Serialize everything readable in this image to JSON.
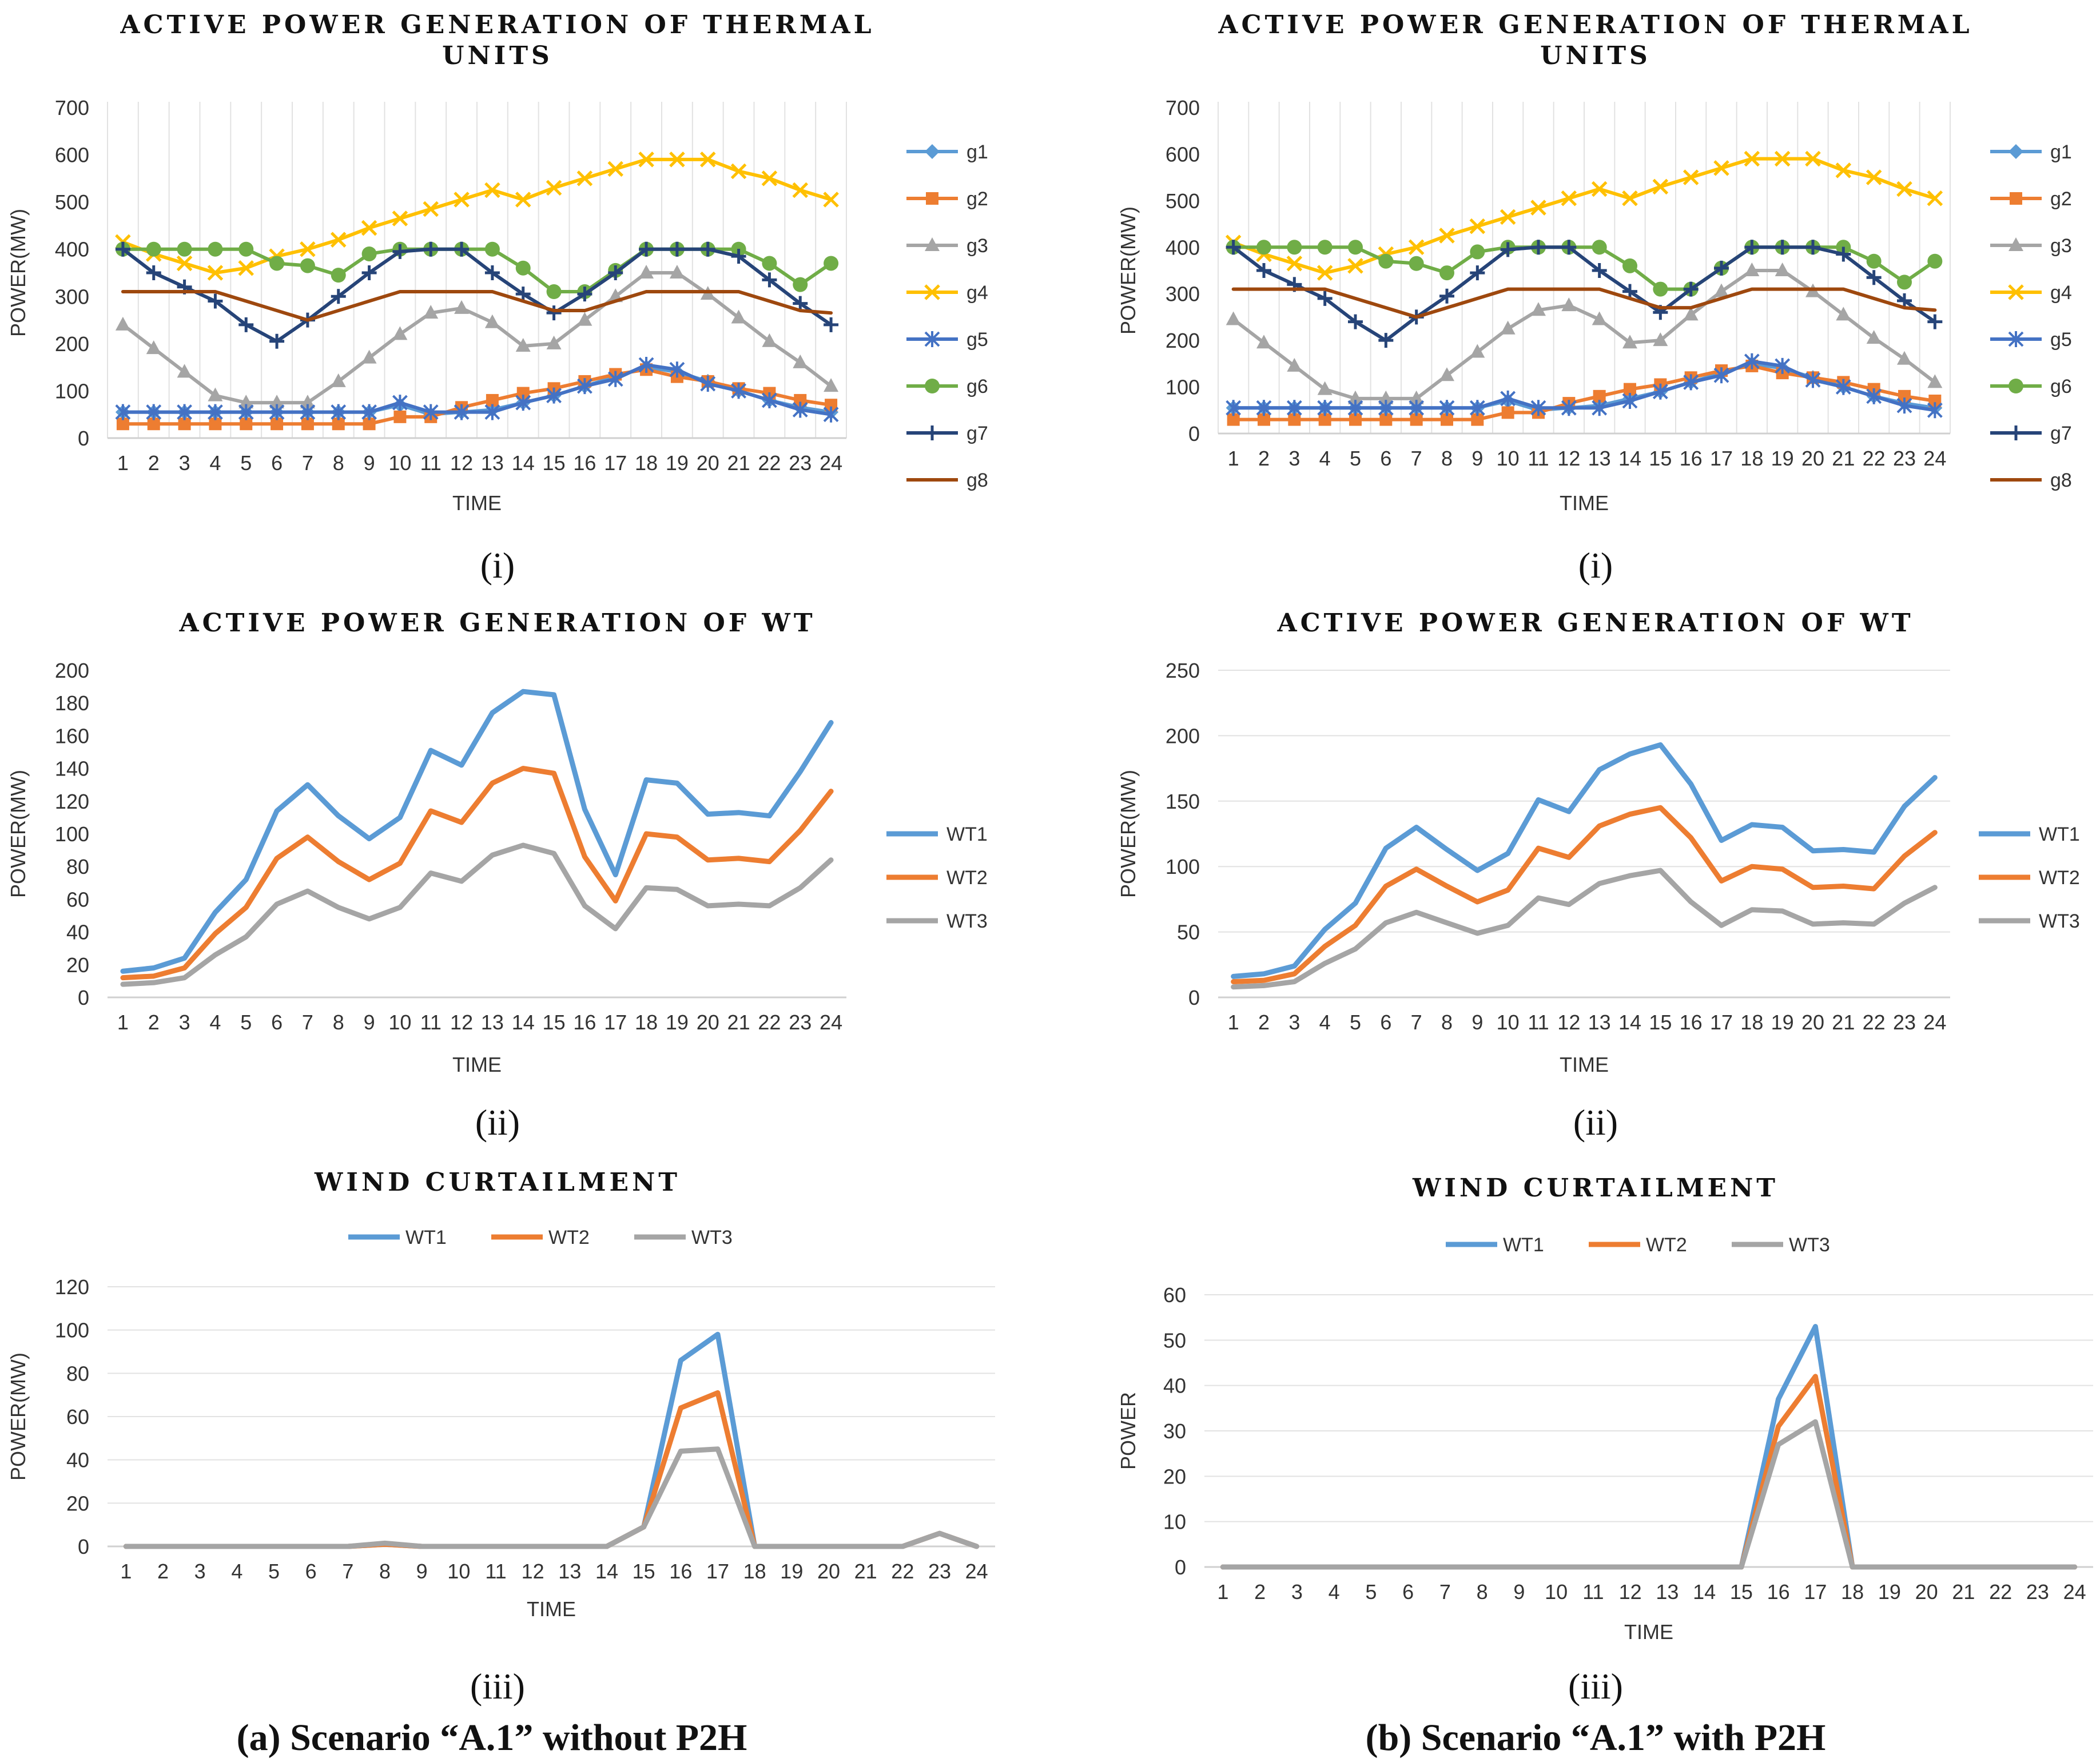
{
  "captions": {
    "left": "(a) Scenario “A.1” without P2H",
    "right": "(b) Scenario “A.1” with P2H"
  },
  "colors": {
    "g1": "#5B9BD5",
    "g2": "#ED7D31",
    "g3": "#A5A5A5",
    "g4": "#FFC000",
    "g5": "#4472C4",
    "g6": "#70AD47",
    "g7": "#264478",
    "g8": "#9E480E",
    "WT1": "#5B9BD5",
    "WT2": "#ED7D31",
    "WT3": "#A5A5A5"
  },
  "chart_data": [
    {
      "id": "a_i",
      "panel_label": "(i)",
      "type": "line",
      "title": [
        "ACTIVE POWER GENERATION OF THERMAL",
        "UNITS"
      ],
      "xlabel": "TIME",
      "ylabel": "POWER(MW)",
      "ylim": [
        0,
        700
      ],
      "ystep": 100,
      "grid": "vertical",
      "legend": "right",
      "markers": true,
      "x": [
        1,
        2,
        3,
        4,
        5,
        6,
        7,
        8,
        9,
        10,
        11,
        12,
        13,
        14,
        15,
        16,
        17,
        18,
        19,
        20,
        21,
        22,
        23,
        24
      ],
      "series": [
        {
          "name": "g1",
          "marker": "diamond",
          "values": [
            55,
            55,
            55,
            55,
            55,
            55,
            55,
            55,
            55,
            70,
            50,
            55,
            60,
            75,
            90,
            110,
            130,
            150,
            140,
            120,
            100,
            80,
            65,
            55
          ]
        },
        {
          "name": "g2",
          "marker": "square",
          "values": [
            30,
            30,
            30,
            30,
            30,
            30,
            30,
            30,
            30,
            45,
            45,
            65,
            80,
            95,
            105,
            120,
            135,
            145,
            130,
            120,
            105,
            95,
            80,
            70
          ]
        },
        {
          "name": "g3",
          "marker": "triangle",
          "values": [
            240,
            190,
            140,
            90,
            75,
            75,
            75,
            120,
            170,
            220,
            265,
            275,
            245,
            195,
            200,
            250,
            300,
            350,
            350,
            305,
            255,
            205,
            160,
            110
          ]
        },
        {
          "name": "g4",
          "marker": "x",
          "values": [
            415,
            390,
            370,
            350,
            360,
            385,
            400,
            420,
            445,
            465,
            485,
            505,
            525,
            505,
            530,
            550,
            570,
            590,
            590,
            590,
            565,
            550,
            525,
            505
          ]
        },
        {
          "name": "g5",
          "marker": "asterisk",
          "values": [
            55,
            55,
            55,
            55,
            55,
            55,
            55,
            55,
            55,
            75,
            55,
            55,
            55,
            75,
            90,
            110,
            125,
            155,
            145,
            115,
            100,
            80,
            60,
            50
          ]
        },
        {
          "name": "g6",
          "marker": "circle",
          "values": [
            400,
            400,
            400,
            400,
            400,
            370,
            365,
            345,
            390,
            400,
            400,
            400,
            400,
            360,
            310,
            310,
            355,
            400,
            400,
            400,
            400,
            370,
            325,
            370
          ]
        },
        {
          "name": "g7",
          "marker": "plus",
          "values": [
            400,
            350,
            320,
            290,
            240,
            205,
            250,
            300,
            350,
            395,
            400,
            400,
            350,
            305,
            265,
            305,
            350,
            400,
            400,
            400,
            385,
            335,
            285,
            240
          ]
        },
        {
          "name": "g8",
          "marker": "none",
          "values": [
            310,
            310,
            310,
            310,
            290,
            270,
            250,
            270,
            290,
            310,
            310,
            310,
            310,
            290,
            270,
            270,
            290,
            310,
            310,
            310,
            310,
            290,
            270,
            265
          ]
        }
      ]
    },
    {
      "id": "b_i",
      "panel_label": "(i)",
      "type": "line",
      "title": [
        "ACTIVE POWER GENERATION OF THERMAL",
        "UNITS"
      ],
      "xlabel": "TIME",
      "ylabel": "POWER(MW)",
      "ylim": [
        0,
        700
      ],
      "ystep": 100,
      "grid": "vertical",
      "legend": "right",
      "markers": true,
      "x": [
        1,
        2,
        3,
        4,
        5,
        6,
        7,
        8,
        9,
        10,
        11,
        12,
        13,
        14,
        15,
        16,
        17,
        18,
        19,
        20,
        21,
        22,
        23,
        24
      ],
      "series": [
        {
          "name": "g1",
          "marker": "diamond",
          "values": [
            55,
            55,
            55,
            55,
            55,
            55,
            55,
            55,
            55,
            70,
            50,
            55,
            60,
            75,
            90,
            110,
            130,
            150,
            140,
            120,
            100,
            80,
            65,
            55
          ]
        },
        {
          "name": "g2",
          "marker": "square",
          "values": [
            30,
            30,
            30,
            30,
            30,
            30,
            30,
            30,
            30,
            45,
            45,
            65,
            80,
            95,
            105,
            120,
            135,
            145,
            130,
            120,
            110,
            95,
            80,
            70
          ]
        },
        {
          "name": "g3",
          "marker": "triangle",
          "values": [
            245,
            195,
            145,
            95,
            75,
            75,
            75,
            125,
            175,
            225,
            265,
            275,
            245,
            195,
            200,
            255,
            305,
            350,
            350,
            305,
            255,
            205,
            160,
            110
          ]
        },
        {
          "name": "g4",
          "marker": "x",
          "values": [
            410,
            385,
            365,
            345,
            360,
            385,
            400,
            425,
            445,
            465,
            485,
            505,
            525,
            505,
            530,
            550,
            570,
            590,
            590,
            590,
            565,
            550,
            525,
            505
          ]
        },
        {
          "name": "g5",
          "marker": "asterisk",
          "values": [
            55,
            55,
            55,
            55,
            55,
            55,
            55,
            55,
            55,
            75,
            55,
            55,
            55,
            70,
            90,
            110,
            125,
            155,
            145,
            115,
            100,
            80,
            60,
            50
          ]
        },
        {
          "name": "g6",
          "marker": "circle",
          "values": [
            400,
            400,
            400,
            400,
            400,
            370,
            365,
            345,
            390,
            400,
            400,
            400,
            400,
            360,
            310,
            310,
            355,
            400,
            400,
            400,
            400,
            370,
            325,
            370
          ]
        },
        {
          "name": "g7",
          "marker": "plus",
          "values": [
            400,
            350,
            320,
            290,
            240,
            200,
            250,
            295,
            345,
            395,
            400,
            400,
            350,
            305,
            260,
            310,
            355,
            400,
            400,
            400,
            385,
            335,
            285,
            240
          ]
        },
        {
          "name": "g8",
          "marker": "none",
          "values": [
            310,
            310,
            310,
            310,
            290,
            270,
            250,
            270,
            290,
            310,
            310,
            310,
            310,
            290,
            270,
            270,
            290,
            310,
            310,
            310,
            310,
            290,
            270,
            265
          ]
        }
      ]
    },
    {
      "id": "a_ii",
      "panel_label": "(ii)",
      "type": "line",
      "title": [
        "ACTIVE POWER GENERATION OF WT"
      ],
      "xlabel": "TIME",
      "ylabel": "POWER(MW)",
      "ylim": [
        0,
        200
      ],
      "ystep": 20,
      "grid": "none",
      "legend": "right",
      "markers": false,
      "x": [
        1,
        2,
        3,
        4,
        5,
        6,
        7,
        8,
        9,
        10,
        11,
        12,
        13,
        14,
        15,
        16,
        17,
        18,
        19,
        20,
        21,
        22,
        23,
        24
      ],
      "series": [
        {
          "name": "WT1",
          "values": [
            16,
            18,
            24,
            52,
            72,
            114,
            130,
            111,
            97,
            110,
            151,
            142,
            174,
            187,
            185,
            115,
            75,
            133,
            131,
            112,
            113,
            111,
            138,
            168
          ]
        },
        {
          "name": "WT2",
          "values": [
            12,
            13,
            18,
            39,
            55,
            85,
            98,
            83,
            72,
            82,
            114,
            107,
            131,
            140,
            137,
            86,
            59,
            100,
            98,
            84,
            85,
            83,
            102,
            126
          ]
        },
        {
          "name": "WT3",
          "values": [
            8,
            9,
            12,
            26,
            37,
            57,
            65,
            55,
            48,
            55,
            76,
            71,
            87,
            93,
            88,
            56,
            42,
            67,
            66,
            56,
            57,
            56,
            67,
            84
          ]
        }
      ]
    },
    {
      "id": "b_ii",
      "panel_label": "(ii)",
      "type": "line",
      "title": [
        "ACTIVE POWER GENERATION OF WT"
      ],
      "xlabel": "TIME",
      "ylabel": "POWER(MW)",
      "ylim": [
        0,
        250
      ],
      "ystep": 50,
      "grid": "horizontal",
      "legend": "right",
      "markers": false,
      "x": [
        1,
        2,
        3,
        4,
        5,
        6,
        7,
        8,
        9,
        10,
        11,
        12,
        13,
        14,
        15,
        16,
        17,
        18,
        19,
        20,
        21,
        22,
        23,
        24
      ],
      "series": [
        {
          "name": "WT1",
          "values": [
            16,
            18,
            24,
            52,
            72,
            114,
            130,
            113,
            97,
            110,
            151,
            142,
            174,
            186,
            193,
            163,
            120,
            132,
            130,
            112,
            113,
            111,
            146,
            168
          ]
        },
        {
          "name": "WT2",
          "values": [
            12,
            13,
            18,
            39,
            55,
            85,
            98,
            85,
            73,
            82,
            114,
            107,
            131,
            140,
            145,
            122,
            89,
            100,
            98,
            84,
            85,
            83,
            108,
            126
          ]
        },
        {
          "name": "WT3",
          "values": [
            8,
            9,
            12,
            26,
            37,
            57,
            65,
            57,
            49,
            55,
            76,
            71,
            87,
            93,
            97,
            73,
            55,
            67,
            66,
            56,
            57,
            56,
            72,
            84
          ]
        }
      ]
    },
    {
      "id": "a_iii",
      "panel_label": "(iii)",
      "type": "line",
      "title": [
        "WIND CURTAILMENT"
      ],
      "xlabel": "TIME",
      "ylabel": "POWER(MW)",
      "ylim": [
        0,
        120
      ],
      "ystep": 20,
      "grid": "horizontal",
      "legend": "top",
      "markers": false,
      "x": [
        1,
        2,
        3,
        4,
        5,
        6,
        7,
        8,
        9,
        10,
        11,
        12,
        13,
        14,
        15,
        16,
        17,
        18,
        19,
        20,
        21,
        22,
        23,
        24
      ],
      "series": [
        {
          "name": "WT1",
          "values": [
            0,
            0,
            0,
            0,
            0,
            0,
            0,
            1,
            0,
            0,
            0,
            0,
            0,
            0,
            9,
            86,
            98,
            0,
            0,
            0,
            0,
            0,
            6,
            0
          ]
        },
        {
          "name": "WT2",
          "values": [
            0,
            0,
            0,
            0,
            0,
            0,
            0,
            1,
            0,
            0,
            0,
            0,
            0,
            0,
            9,
            64,
            71,
            0,
            0,
            0,
            0,
            0,
            6,
            0
          ]
        },
        {
          "name": "WT3",
          "values": [
            0,
            0,
            0,
            0,
            0,
            0,
            0,
            1.5,
            0,
            0,
            0,
            0,
            0,
            0,
            9,
            44,
            45,
            0,
            0,
            0,
            0,
            0,
            6,
            0
          ]
        }
      ]
    },
    {
      "id": "b_iii",
      "panel_label": "(iii)",
      "type": "line",
      "title": [
        "WIND CURTAILMENT"
      ],
      "xlabel": "TIME",
      "ylabel": "POWER",
      "ylim": [
        0,
        60
      ],
      "ystep": 10,
      "grid": "horizontal",
      "legend": "top",
      "markers": false,
      "x": [
        1,
        2,
        3,
        4,
        5,
        6,
        7,
        8,
        9,
        10,
        11,
        12,
        13,
        14,
        15,
        16,
        17,
        18,
        19,
        20,
        21,
        22,
        23,
        24
      ],
      "series": [
        {
          "name": "WT1",
          "values": [
            0,
            0,
            0,
            0,
            0,
            0,
            0,
            0,
            0,
            0,
            0,
            0,
            0,
            0,
            0,
            37,
            53,
            0,
            0,
            0,
            0,
            0,
            0,
            0
          ]
        },
        {
          "name": "WT2",
          "values": [
            0,
            0,
            0,
            0,
            0,
            0,
            0,
            0,
            0,
            0,
            0,
            0,
            0,
            0,
            0,
            31,
            42,
            0,
            0,
            0,
            0,
            0,
            0,
            0
          ]
        },
        {
          "name": "WT3",
          "values": [
            0,
            0,
            0,
            0,
            0,
            0,
            0,
            0,
            0,
            0,
            0,
            0,
            0,
            0,
            0,
            27,
            32,
            0,
            0,
            0,
            0,
            0,
            0,
            0
          ]
        }
      ]
    }
  ]
}
